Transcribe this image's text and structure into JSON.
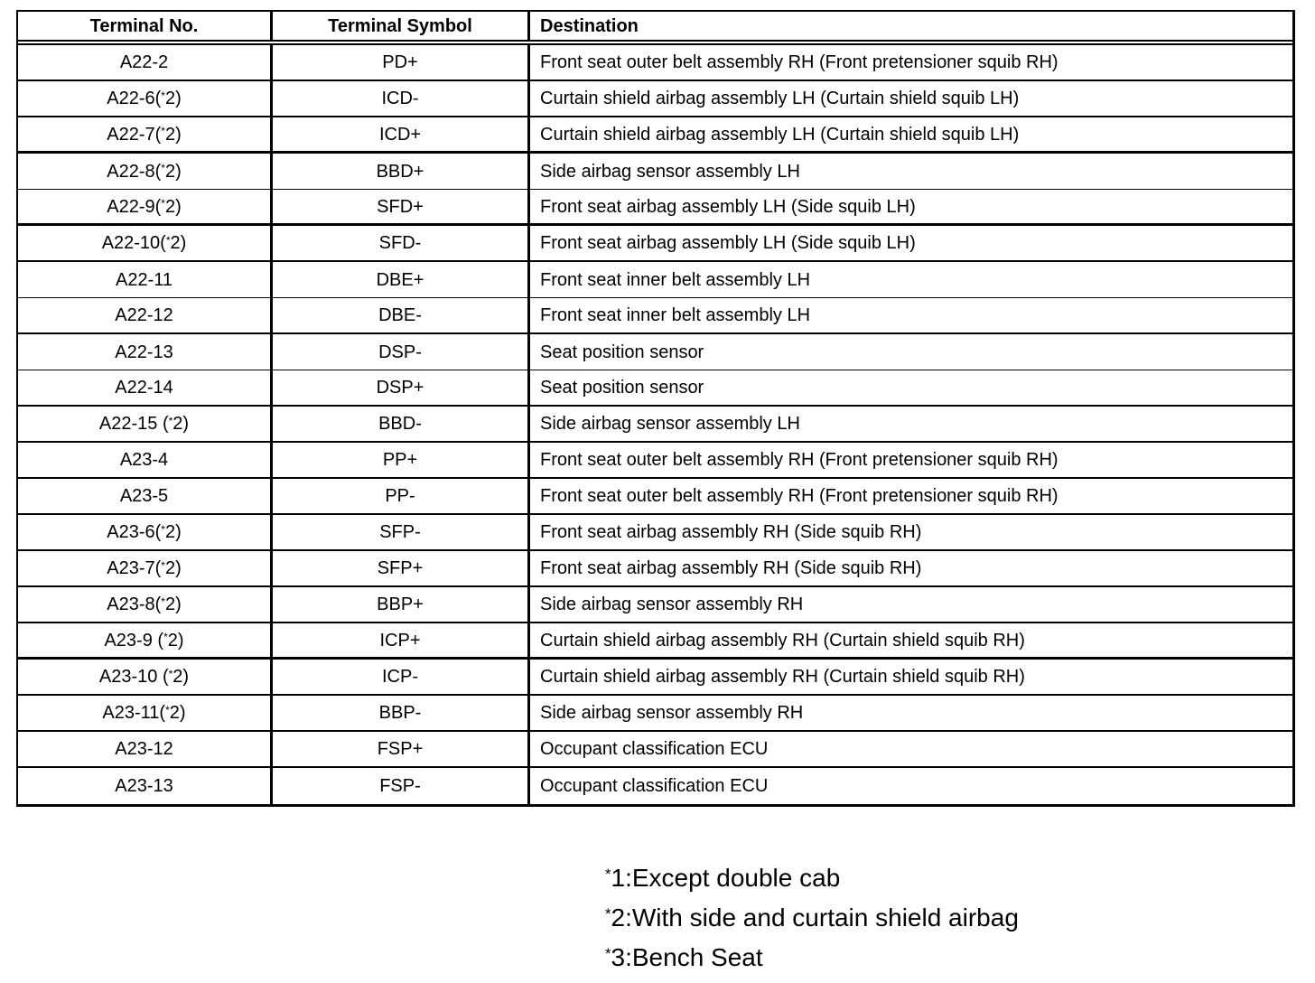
{
  "table": {
    "headers": {
      "terminal_no": "Terminal No.",
      "terminal_symbol": "Terminal Symbol",
      "destination": "Destination"
    },
    "rows": [
      {
        "terminal_no": "A22-2",
        "terminal_symbol": "PD+",
        "destination": "Front seat outer belt assembly RH (Front pretensioner squib RH)"
      },
      {
        "terminal_no": "A22-6(*2)",
        "terminal_symbol": "ICD-",
        "destination": "Curtain shield airbag assembly LH (Curtain shield squib LH)"
      },
      {
        "terminal_no": "A22-7(*2)",
        "terminal_symbol": "ICD+",
        "destination": "Curtain shield airbag assembly LH (Curtain shield squib LH)"
      },
      {
        "terminal_no": "A22-8(*2)",
        "terminal_symbol": "BBD+",
        "destination": "Side airbag sensor assembly LH"
      },
      {
        "terminal_no": "A22-9(*2)",
        "terminal_symbol": "SFD+",
        "destination": "Front seat airbag assembly LH (Side squib LH)"
      },
      {
        "terminal_no": "A22-10(*2)",
        "terminal_symbol": "SFD-",
        "destination": "Front seat airbag assembly LH (Side squib LH)"
      },
      {
        "terminal_no": "A22-11",
        "terminal_symbol": "DBE+",
        "destination": "Front seat inner belt assembly LH"
      },
      {
        "terminal_no": "A22-12",
        "terminal_symbol": "DBE-",
        "destination": "Front seat inner belt assembly LH"
      },
      {
        "terminal_no": "A22-13",
        "terminal_symbol": "DSP-",
        "destination": "Seat position sensor"
      },
      {
        "terminal_no": "A22-14",
        "terminal_symbol": "DSP+",
        "destination": "Seat position sensor"
      },
      {
        "terminal_no": "A22-15 (*2)",
        "terminal_symbol": "BBD-",
        "destination": "Side airbag sensor assembly LH"
      },
      {
        "terminal_no": "A23-4",
        "terminal_symbol": "PP+",
        "destination": "Front seat outer belt assembly RH (Front pretensioner squib RH)"
      },
      {
        "terminal_no": "A23-5",
        "terminal_symbol": "PP-",
        "destination": "Front seat outer belt assembly RH (Front pretensioner squib RH)"
      },
      {
        "terminal_no": "A23-6(*2)",
        "terminal_symbol": "SFP-",
        "destination": "Front seat airbag assembly RH (Side squib RH)"
      },
      {
        "terminal_no": "A23-7(*2)",
        "terminal_symbol": "SFP+",
        "destination": "Front seat airbag assembly RH (Side squib RH)"
      },
      {
        "terminal_no": "A23-8(*2)",
        "terminal_symbol": "BBP+",
        "destination": "Side airbag sensor assembly RH"
      },
      {
        "terminal_no": "A23-9 (*2)",
        "terminal_symbol": "ICP+",
        "destination": "Curtain shield airbag assembly RH (Curtain shield squib RH)"
      },
      {
        "terminal_no": "A23-10 (*2)",
        "terminal_symbol": "ICP-",
        "destination": "Curtain shield airbag assembly RH (Curtain shield squib RH)"
      },
      {
        "terminal_no": "A23-11(*2)",
        "terminal_symbol": "BBP-",
        "destination": "Side airbag sensor assembly RH"
      },
      {
        "terminal_no": "A23-12",
        "terminal_symbol": "FSP+",
        "destination": "Occupant classification ECU"
      },
      {
        "terminal_no": "A23-13",
        "terminal_symbol": "FSP-",
        "destination": "Occupant classification ECU"
      }
    ]
  },
  "footnotes": [
    "*1:Except double cab",
    "*2:With side and curtain shield airbag",
    "*3:Bench Seat"
  ],
  "colors": {
    "ink": "#000000",
    "paper": "#ffffff"
  }
}
